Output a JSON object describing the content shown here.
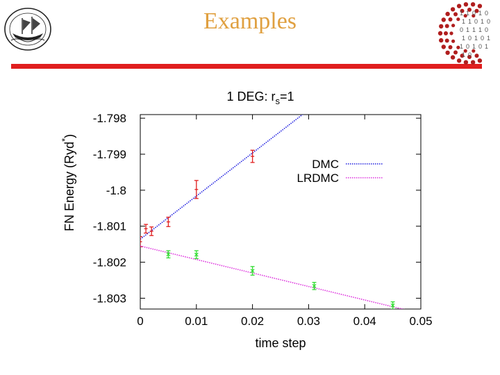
{
  "slide": {
    "title": "Examples",
    "colors": {
      "title": "#E0A040",
      "rule": "#E01E1E",
      "logo_dots": "#B01E1E"
    },
    "logo_left_icon": "ship-emblem-icon",
    "logo_right_icon": "binary-dot-logo-icon",
    "logo_right_digits": [
      "1",
      "1",
      "0",
      "1",
      "0",
      "1",
      "1",
      "0",
      "1",
      "0",
      "0",
      "1",
      "1",
      "1",
      "0",
      "1",
      "0",
      "1",
      "0",
      "1",
      "1",
      "0",
      "1",
      "0",
      "1",
      "1",
      "0"
    ]
  },
  "chart_data": {
    "type": "scatter",
    "title": "1 DEG: r",
    "title_subscript": "s",
    "title_suffix": "=1",
    "xlabel": "time step",
    "ylabel": "FN Energy (Ryd",
    "ylabel_superscript": "*",
    "ylabel_suffix": ")",
    "xlim": [
      0,
      0.05
    ],
    "ylim": [
      -1.8033,
      -1.7979
    ],
    "x_ticks": [
      0,
      0.01,
      0.02,
      0.03,
      0.04,
      0.05
    ],
    "x_tick_labels": [
      "0",
      "0.01",
      "0.02",
      "0.03",
      "0.04",
      "0.05"
    ],
    "y_ticks": [
      -1.798,
      -1.799,
      -1.8,
      -1.801,
      -1.802,
      -1.803
    ],
    "y_tick_labels": [
      "-1.798",
      "-1.799",
      "-1.8",
      "-1.801",
      "-1.802",
      "-1.803"
    ],
    "grid": false,
    "legend_position": "top-right",
    "series": [
      {
        "name": "DMC",
        "color": "#E01E1E",
        "fit_color": "#1E1EE0",
        "fit_line": {
          "slope": 0.1197,
          "intercept": -1.80136
        },
        "points": [
          {
            "x": 0.0,
            "y": -1.80143,
            "err": 0.00014
          },
          {
            "x": 0.001,
            "y": -1.80107,
            "err": 0.00012
          },
          {
            "x": 0.002,
            "y": -1.80114,
            "err": 0.00012
          },
          {
            "x": 0.005,
            "y": -1.80088,
            "err": 0.00013
          },
          {
            "x": 0.01,
            "y": -1.79998,
            "err": 0.00025
          },
          {
            "x": 0.02,
            "y": -1.79906,
            "err": 0.00017
          }
        ]
      },
      {
        "name": "LRDMC",
        "color": "#33DD33",
        "fit_color": "#DD33DD",
        "fit_line": {
          "slope": -0.03747,
          "intercept": -1.80155
        },
        "points": [
          {
            "x": 0.005,
            "y": -1.80178,
            "err": 0.0001
          },
          {
            "x": 0.01,
            "y": -1.80179,
            "err": 0.00011
          },
          {
            "x": 0.02,
            "y": -1.80224,
            "err": 0.00012
          },
          {
            "x": 0.031,
            "y": -1.80266,
            "err": 0.0001
          },
          {
            "x": 0.045,
            "y": -1.8032,
            "err": 0.0001
          }
        ]
      }
    ]
  }
}
